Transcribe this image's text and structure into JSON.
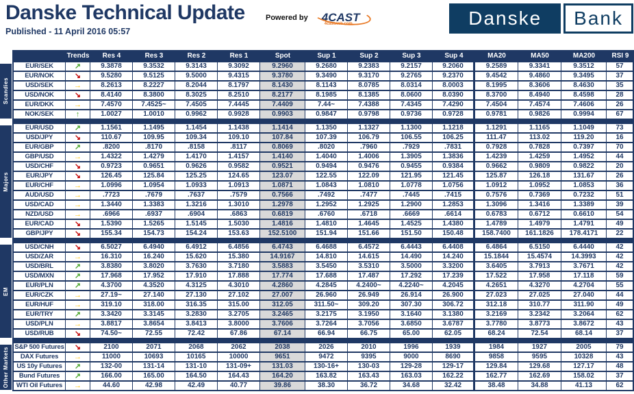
{
  "header": {
    "title": "Danske Technical Update",
    "published": "Published - 11 April 2016 05:57",
    "powered_by_label": "Powered by",
    "fourcast_logo": "4CAST",
    "fourcast_sub": "4castweb.com",
    "bank_logo_left": "Danske",
    "bank_logo_right": "Bank"
  },
  "colors": {
    "navy": "#1F3864",
    "logo_blue": "#0F3D62",
    "spot_bg": "#D9D9D9",
    "trend_up": "#4EA72E",
    "trend_down": "#C00000",
    "trend_flat": "#FFC000",
    "fourcast_orange": "#E87722"
  },
  "table": {
    "columns": [
      "Trends",
      "Res 4",
      "Res 3",
      "Res 2",
      "Res 1",
      "Spot",
      "Sup 1",
      "Sup 2",
      "Sup 3",
      "Sup 4",
      "MA20",
      "MA50",
      "MA200",
      "RSI 9"
    ],
    "groups": [
      {
        "label": "Scandies",
        "rows": [
          {
            "pair": "EUR/SEK",
            "trend": "up-right",
            "values": [
              "9.3878",
              "9.3532",
              "9.3143",
              "9.3092",
              "9.2960",
              "9.2680",
              "9.2383",
              "9.2157",
              "9.2060",
              "9.2589",
              "9.3341",
              "9.3512",
              "57"
            ]
          },
          {
            "pair": "EUR/NOK",
            "trend": "down-right",
            "values": [
              "9.5280",
              "9.5125",
              "9.5000",
              "9.4315",
              "9.3780",
              "9.3490",
              "9.3170",
              "9.2765",
              "9.2370",
              "9.4542",
              "9.4860",
              "9.3495",
              "37"
            ]
          },
          {
            "pair": "USD/SEK",
            "trend": "right",
            "values": [
              "8.2613",
              "8.2227",
              "8.2044",
              "8.1797",
              "8.1430",
              "8.1143",
              "8.0785",
              "8.0314",
              "8.0003",
              "8.1995",
              "8.3606",
              "8.4630",
              "35"
            ]
          },
          {
            "pair": "USD/NOK",
            "trend": "down-right",
            "values": [
              "8.4140",
              "8.3800",
              "8.3025",
              "8.2510",
              "8.2177",
              "8.1985",
              "8.1385",
              "8.0600",
              "8.0390",
              "8.3700",
              "8.4940",
              "8.4598",
              "28"
            ]
          },
          {
            "pair": "EUR/DKK",
            "trend": "right",
            "values": [
              "7.4570",
              "7.4525~",
              "7.4505",
              "7.4445",
              "7.4409",
              "7.44~",
              "7.4388",
              "7.4345",
              "7.4290",
              "7.4504",
              "7.4574",
              "7.4606",
              "26"
            ]
          },
          {
            "pair": "NOK/SEK",
            "trend": "up",
            "values": [
              "1.0027",
              "1.0010",
              "0.9962",
              "0.9928",
              "0.9903",
              "0.9847",
              "0.9798",
              "0.9736",
              "0.9728",
              "0.9781",
              "0.9826",
              "0.9994",
              "67"
            ]
          }
        ]
      },
      {
        "label": "Majors",
        "rows": [
          {
            "pair": "EUR/USD",
            "trend": "up-right",
            "values": [
              "1.1561",
              "1.1495",
              "1.1454",
              "1.1438",
              "1.1414",
              "1.1350",
              "1.1327",
              "1.1300",
              "1.1218",
              "1.1291",
              "1.1165",
              "1.1049",
              "73"
            ]
          },
          {
            "pair": "USD/JPY",
            "trend": "down-right",
            "values": [
              "110.67",
              "109.95",
              "109.34",
              "109.10",
              "107.84",
              "107.39",
              "106.79",
              "106.55",
              "106.25",
              "111.47",
              "113.02",
              "119.20",
              "16"
            ]
          },
          {
            "pair": "EUR/GBP",
            "trend": "up-right",
            "values": [
              ".8200",
              ".8170",
              ".8158",
              ".8117",
              "0.8069",
              ".8020",
              ".7960",
              ".7929",
              ".7831",
              "0.7928",
              "0.7828",
              "0.7397",
              "70"
            ]
          },
          {
            "pair": "GBP/USD",
            "trend": "right",
            "values": [
              "1.4322",
              "1.4279",
              "1.4170",
              "1.4157",
              "1.4140",
              "1.4040",
              "1.4006",
              "1.3905",
              "1.3836",
              "1.4239",
              "1.4259",
              "1.4952",
              "44"
            ]
          },
          {
            "pair": "USD/CHF",
            "trend": "down-right",
            "values": [
              "0.9723",
              "0.9651",
              "0.9626",
              "0.9582",
              "0.9521",
              "0.9494",
              "0.9476",
              "0.9455",
              "0.9384",
              "0.9662",
              "0.9809",
              "0.9822",
              "20"
            ]
          },
          {
            "pair": "EUR/JPY",
            "trend": "down-right",
            "values": [
              "126.45",
              "125.84",
              "125.25",
              "124.65",
              "123.07",
              "122.55",
              "122.09",
              "121.95",
              "121.45",
              "125.87",
              "126.18",
              "131.67",
              "26"
            ]
          },
          {
            "pair": "EUR/CHF",
            "trend": "right",
            "values": [
              "1.0996",
              "1.0954",
              "1.0933",
              "1.0913",
              "1.0871",
              "1.0843",
              "1.0810",
              "1.0778",
              "1.0756",
              "1.0912",
              "1.0952",
              "1.0853",
              "36"
            ]
          },
          {
            "pair": "AUD/USD",
            "trend": "right",
            "values": [
              ".7723",
              ".7679",
              ".7637",
              ".7579",
              "0.7566",
              ".7492",
              ".7477",
              ".7445",
              ".7415",
              "0.7576",
              "0.7369",
              "0.7232",
              "51"
            ]
          },
          {
            "pair": "USD/CAD",
            "trend": "right",
            "values": [
              "1.3440",
              "1.3383",
              "1.3216",
              "1.3010",
              "1.2978",
              "1.2952",
              "1.2925",
              "1.2900",
              "1.2853",
              "1.3096",
              "1.3416",
              "1.3389",
              "39"
            ]
          },
          {
            "pair": "NZD/USD",
            "trend": "right",
            "values": [
              ".6966",
              ".6937",
              ".6904",
              ".6863",
              "0.6819",
              ".6760",
              ".6718",
              ".6669",
              ".6614",
              "0.6783",
              "0.6712",
              "0.6610",
              "54"
            ]
          },
          {
            "pair": "EUR/CAD",
            "trend": "down-right",
            "values": [
              "1.5390",
              "1.5265",
              "1.5145",
              "1.5030",
              "1.4816",
              "1.4810",
              "1.4645",
              "1.4525",
              "1.4380",
              "1.4789",
              "1.4979",
              "1.4791",
              "49"
            ]
          },
          {
            "pair": "GBP/JPY",
            "trend": "down-right",
            "values": [
              "155.34",
              "154.73",
              "154.24",
              "153.63",
              "152.5100",
              "151.94",
              "151.66",
              "151.50",
              "150.48",
              "158.7400",
              "161.1826",
              "178.4171",
              "22"
            ]
          }
        ]
      },
      {
        "label": "EM",
        "rows": [
          {
            "pair": "USD/CNH",
            "trend": "down-right",
            "values": [
              "6.5027",
              "6.4940",
              "6.4912",
              "6.4856",
              "6.4743",
              "6.4688",
              "6.4572",
              "6.4443",
              "6.4408",
              "6.4864",
              "6.5150",
              "6.4440",
              "42"
            ]
          },
          {
            "pair": "USD/ZAR",
            "trend": "right",
            "values": [
              "16.310",
              "16.240",
              "15.620",
              "15.380",
              "14.9167",
              "14.810",
              "14.615",
              "14.490",
              "14.240",
              "15.1844",
              "15.4574",
              "14.3993",
              "42"
            ]
          },
          {
            "pair": "USD/BRL",
            "trend": "up-right",
            "values": [
              "3.8380",
              "3.8020",
              "3.7630",
              "3.7180",
              "3.5883",
              "3.5450",
              "3.5310",
              "3.5000",
              "3.3200",
              "3.6405",
              "3.7913",
              "3.7671",
              "42"
            ]
          },
          {
            "pair": "USD/MXN",
            "trend": "up-right",
            "values": [
              "17.968",
              "17.952",
              "17.910",
              "17.888",
              "17.774",
              "17.688",
              "17.487",
              "17.292",
              "17.239",
              "17.522",
              "17.958",
              "17.118",
              "59"
            ]
          },
          {
            "pair": "EUR/PLN",
            "trend": "up-right",
            "values": [
              "4.3700",
              "4.3520",
              "4.3125",
              "4.3010",
              "4.2860",
              "4.2845",
              "4.2400~",
              "4.2240~",
              "4.2045",
              "4.2651",
              "4.3270",
              "4.2704",
              "55"
            ]
          },
          {
            "pair": "EUR/CZK",
            "trend": "right",
            "values": [
              "27.19~",
              "27.140",
              "27.130",
              "27.102",
              "27.007",
              "26.960",
              "26.949",
              "26.914",
              "26.900",
              "27.023",
              "27.025",
              "27.040",
              "44"
            ]
          },
          {
            "pair": "EUR/HUF",
            "trend": "right",
            "values": [
              "319.10",
              "318.00",
              "316.35",
              "315.00",
              "312.05",
              "311.50~",
              "309.20",
              "307.30",
              "306.72",
              "312.18",
              "310.77",
              "311.90",
              "49"
            ]
          },
          {
            "pair": "EUR/TRY",
            "trend": "up-right",
            "values": [
              "3.3420",
              "3.3145",
              "3.2830",
              "3.2705",
              "3.2465",
              "3.2175",
              "3.1950",
              "3.1640",
              "3.1380",
              "3.2169",
              "3.2342",
              "3.2064",
              "62"
            ]
          },
          {
            "pair": "USD/PLN",
            "trend": "right",
            "values": [
              "3.8817",
              "3.8654",
              "3.8413",
              "3.8000",
              "3.7606",
              "3.7264",
              "3.7056",
              "3.6850",
              "3.6787",
              "3.7780",
              "3.8773",
              "3.8672",
              "43"
            ]
          },
          {
            "pair": "USD/RUB",
            "trend": "down-right",
            "values": [
              "74.50~",
              "72.55",
              "72.42",
              "67.86",
              "67.14",
              "66.94",
              "66.75",
              "65.00",
              "62.05",
              "68.24",
              "72.54",
              "68.14",
              "37"
            ]
          }
        ]
      },
      {
        "label": "Other Markets",
        "rows": [
          {
            "pair": "S&P 500 Futures",
            "trend": "down-right",
            "values": [
              "2100",
              "2071",
              "2068",
              "2062",
              "2038",
              "2026",
              "2010",
              "1996",
              "1939",
              "1984",
              "1927",
              "2005",
              "79"
            ]
          },
          {
            "pair": "DAX Futures",
            "trend": "right",
            "values": [
              "11000",
              "10693",
              "10165",
              "10000",
              "9651",
              "9472",
              "9395",
              "9000",
              "8690",
              "9858",
              "9595",
              "10328",
              "43"
            ]
          },
          {
            "pair": "US 10y Futures",
            "trend": "up-right",
            "values": [
              "132-00",
              "131-14",
              "131-10",
              "131-09+",
              "131.03",
              "130-16+",
              "130-03",
              "129-28",
              "129-17",
              "129.84",
              "129.68",
              "127.17",
              "48"
            ]
          },
          {
            "pair": "Bund Futures",
            "trend": "up-right",
            "values": [
              "166.00",
              "165.00",
              "164.50",
              "164.43",
              "164.20",
              "163.82",
              "163.43",
              "163.03",
              "162.22",
              "162.77",
              "162.69",
              "158.02",
              "37"
            ]
          },
          {
            "pair": "WTI Oil Futures",
            "trend": "right",
            "values": [
              "44.60",
              "42.98",
              "42.49",
              "40.77",
              "39.86",
              "38.30",
              "36.72",
              "34.68",
              "32.42",
              "38.48",
              "34.88",
              "41.13",
              "62"
            ]
          }
        ]
      }
    ]
  }
}
